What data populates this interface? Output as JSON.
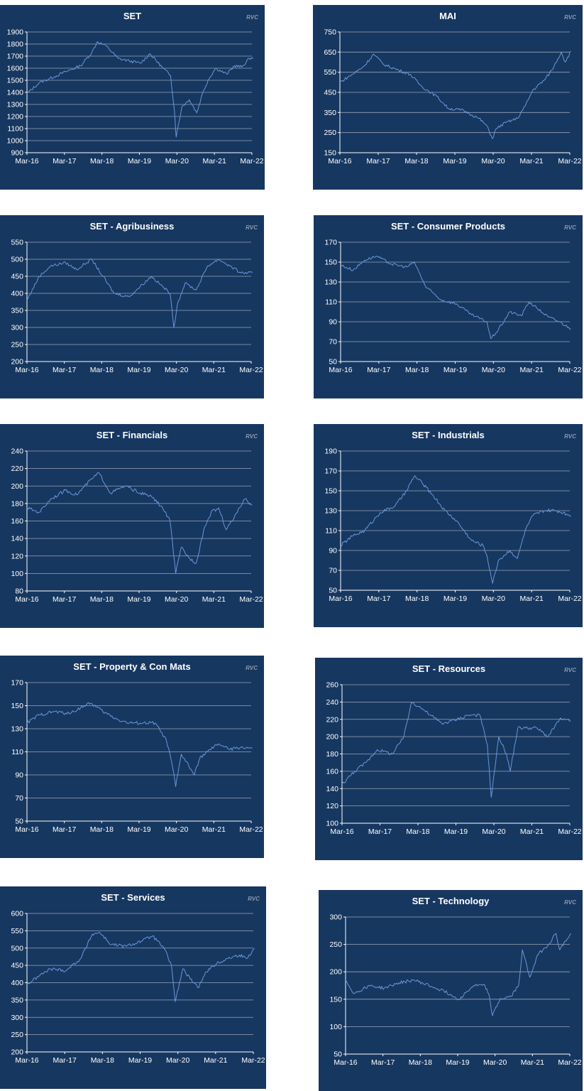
{
  "watermark": "RVC",
  "colors": {
    "panel_bg": "#163760",
    "line": "#6a98d8",
    "grid": "#9aa4b6",
    "axis": "#ffffff",
    "text": "#ffffff"
  },
  "chart_data": [
    {
      "type": "line",
      "title": "SET",
      "xlabel": "",
      "ylabel": "",
      "x_ticks": [
        "Mar-16",
        "Mar-17",
        "Mar-18",
        "Mar-19",
        "Mar-20",
        "Mar-21",
        "Mar-22"
      ],
      "y_ticks": [
        900,
        1000,
        1100,
        1200,
        1300,
        1400,
        1500,
        1600,
        1700,
        1800,
        1900
      ],
      "ylim": [
        900,
        1900
      ],
      "grid": true,
      "series": [
        {
          "x": [
            2016.17,
            2016.5,
            2016.9,
            2017.2,
            2017.6,
            2017.9,
            2018.05,
            2018.3,
            2018.6,
            2018.9,
            2019.2,
            2019.45,
            2019.8,
            2020.0,
            2020.1,
            2020.15,
            2020.3,
            2020.5,
            2020.7,
            2020.85,
            2021.0,
            2021.2,
            2021.5,
            2021.7,
            2021.9,
            2022.1,
            2022.2
          ],
          "y": [
            1390,
            1480,
            1530,
            1570,
            1620,
            1730,
            1820,
            1780,
            1680,
            1660,
            1640,
            1720,
            1600,
            1540,
            1260,
            1030,
            1280,
            1340,
            1230,
            1390,
            1500,
            1600,
            1550,
            1620,
            1610,
            1680,
            1690
          ]
        }
      ]
    },
    {
      "type": "line",
      "title": "MAI",
      "xlabel": "",
      "ylabel": "",
      "x_ticks": [
        "Mar-16",
        "Mar-17",
        "Mar-18",
        "Mar-19",
        "Mar-20",
        "Mar-21",
        "Mar-22"
      ],
      "y_ticks": [
        150,
        250,
        350,
        450,
        550,
        650,
        750
      ],
      "ylim": [
        150,
        750
      ],
      "grid": true,
      "series": [
        {
          "x": [
            2016.17,
            2016.5,
            2016.8,
            2017.05,
            2017.3,
            2017.7,
            2018.0,
            2018.3,
            2018.7,
            2019.0,
            2019.4,
            2019.8,
            2020.0,
            2020.15,
            2020.25,
            2020.5,
            2020.8,
            2021.0,
            2021.2,
            2021.5,
            2021.7,
            2021.95,
            2022.05,
            2022.2
          ],
          "y": [
            500,
            540,
            580,
            640,
            590,
            560,
            540,
            480,
            430,
            370,
            360,
            320,
            285,
            220,
            270,
            300,
            320,
            380,
            460,
            510,
            560,
            650,
            600,
            655
          ]
        }
      ]
    },
    {
      "type": "line",
      "title": "SET - Agribusiness",
      "xlabel": "",
      "ylabel": "",
      "x_ticks": [
        "Mar-16",
        "Mar-17",
        "Mar-18",
        "Mar-19",
        "Mar-20",
        "Mar-21",
        "Mar-22"
      ],
      "y_ticks": [
        200,
        250,
        300,
        350,
        400,
        450,
        500,
        550
      ],
      "ylim": [
        200,
        550
      ],
      "grid": true,
      "series": [
        {
          "x": [
            2016.17,
            2016.5,
            2016.8,
            2017.2,
            2017.5,
            2017.9,
            2018.2,
            2018.5,
            2018.9,
            2019.2,
            2019.5,
            2019.8,
            2020.0,
            2020.1,
            2020.2,
            2020.4,
            2020.7,
            2021.0,
            2021.3,
            2021.6,
            2021.9,
            2022.2
          ],
          "y": [
            380,
            450,
            480,
            490,
            470,
            500,
            450,
            400,
            390,
            420,
            450,
            420,
            400,
            300,
            370,
            430,
            410,
            480,
            500,
            480,
            460,
            460
          ]
        }
      ]
    },
    {
      "type": "line",
      "title": "SET - Consumer Products",
      "xlabel": "",
      "ylabel": "",
      "x_ticks": [
        "Mar-16",
        "Mar-17",
        "Mar-18",
        "Mar-19",
        "Mar-20",
        "Mar-21",
        "Mar-22"
      ],
      "y_ticks": [
        50,
        70,
        90,
        110,
        130,
        150,
        170
      ],
      "ylim": [
        50,
        170
      ],
      "grid": true,
      "series": [
        {
          "x": [
            2016.17,
            2016.5,
            2016.8,
            2017.1,
            2017.5,
            2017.9,
            2018.1,
            2018.4,
            2018.8,
            2019.2,
            2019.6,
            2020.0,
            2020.1,
            2020.3,
            2020.6,
            2020.9,
            2021.1,
            2021.3,
            2021.6,
            2021.9,
            2022.2
          ],
          "y": [
            147,
            142,
            152,
            156,
            148,
            145,
            150,
            125,
            112,
            108,
            97,
            90,
            73,
            82,
            100,
            96,
            110,
            104,
            95,
            90,
            83
          ]
        }
      ]
    },
    {
      "type": "line",
      "title": "SET - Financials",
      "xlabel": "",
      "ylabel": "",
      "x_ticks": [
        "Mar-16",
        "Mar-17",
        "Mar-18",
        "Mar-19",
        "Mar-20",
        "Mar-21",
        "Mar-22"
      ],
      "y_ticks": [
        80,
        100,
        120,
        140,
        160,
        180,
        200,
        220,
        240
      ],
      "ylim": [
        80,
        240
      ],
      "grid": true,
      "series": [
        {
          "x": [
            2016.17,
            2016.5,
            2016.8,
            2017.2,
            2017.5,
            2017.9,
            2018.1,
            2018.4,
            2018.8,
            2019.2,
            2019.5,
            2019.8,
            2020.0,
            2020.15,
            2020.3,
            2020.5,
            2020.7,
            2020.9,
            2021.1,
            2021.3,
            2021.5,
            2021.8,
            2022.0,
            2022.2
          ],
          "y": [
            175,
            170,
            185,
            195,
            190,
            208,
            215,
            192,
            200,
            192,
            188,
            175,
            160,
            100,
            130,
            118,
            112,
            150,
            170,
            175,
            150,
            170,
            185,
            178
          ]
        }
      ]
    },
    {
      "type": "line",
      "title": "SET - Industrials",
      "xlabel": "",
      "ylabel": "",
      "x_ticks": [
        "Mar-16",
        "Mar-17",
        "Mar-18",
        "Mar-19",
        "Mar-20",
        "Mar-21",
        "Mar-22"
      ],
      "y_ticks": [
        50,
        70,
        90,
        110,
        130,
        150,
        170,
        190
      ],
      "ylim": [
        50,
        190
      ],
      "grid": true,
      "series": [
        {
          "x": [
            2016.17,
            2016.5,
            2016.8,
            2017.2,
            2017.6,
            2017.9,
            2018.1,
            2018.3,
            2018.6,
            2018.9,
            2019.2,
            2019.6,
            2019.9,
            2020.0,
            2020.15,
            2020.3,
            2020.6,
            2020.8,
            2021.0,
            2021.2,
            2021.5,
            2021.8,
            2022.0,
            2022.2
          ],
          "y": [
            95,
            105,
            110,
            128,
            135,
            150,
            165,
            158,
            145,
            130,
            120,
            100,
            95,
            85,
            57,
            80,
            90,
            82,
            110,
            125,
            130,
            130,
            128,
            125
          ]
        }
      ]
    },
    {
      "type": "line",
      "title": "SET - Property & Con Mats",
      "xlabel": "",
      "ylabel": "",
      "x_ticks": [
        "Mar-16",
        "Mar-17",
        "Mar-18",
        "Mar-19",
        "Mar-20",
        "Mar-21",
        "Mar-22"
      ],
      "y_ticks": [
        50,
        70,
        90,
        110,
        130,
        150,
        170
      ],
      "ylim": [
        50,
        170
      ],
      "grid": true,
      "series": [
        {
          "x": [
            2016.17,
            2016.5,
            2016.9,
            2017.3,
            2017.7,
            2017.9,
            2018.2,
            2018.6,
            2018.9,
            2019.2,
            2019.6,
            2019.9,
            2020.05,
            2020.15,
            2020.3,
            2020.5,
            2020.65,
            2020.8,
            2021.0,
            2021.3,
            2021.6,
            2021.9,
            2022.2
          ],
          "y": [
            135,
            142,
            145,
            143,
            150,
            152,
            145,
            138,
            135,
            135,
            135,
            120,
            100,
            80,
            108,
            98,
            90,
            105,
            110,
            117,
            112,
            114,
            113
          ]
        }
      ]
    },
    {
      "type": "line",
      "title": "SET - Resources",
      "xlabel": "",
      "ylabel": "",
      "x_ticks": [
        "Mar-16",
        "Mar-17",
        "Mar-18",
        "Mar-19",
        "Mar-20",
        "Mar-21",
        "Mar-22"
      ],
      "y_ticks": [
        100,
        120,
        140,
        160,
        180,
        200,
        220,
        240,
        260
      ],
      "ylim": [
        100,
        260
      ],
      "grid": true,
      "series": [
        {
          "x": [
            2016.17,
            2016.5,
            2016.8,
            2017.1,
            2017.5,
            2017.8,
            2018.0,
            2018.2,
            2018.5,
            2018.8,
            2019.2,
            2019.5,
            2019.8,
            2020.0,
            2020.1,
            2020.3,
            2020.5,
            2020.6,
            2020.8,
            2021.0,
            2021.3,
            2021.6,
            2021.9,
            2022.2
          ],
          "y": [
            145,
            160,
            170,
            185,
            180,
            200,
            240,
            235,
            225,
            215,
            220,
            225,
            225,
            190,
            130,
            200,
            180,
            160,
            210,
            210,
            210,
            200,
            220,
            218
          ]
        }
      ]
    },
    {
      "type": "line",
      "title": "SET - Services",
      "xlabel": "",
      "ylabel": "",
      "x_ticks": [
        "Mar-16",
        "Mar-17",
        "Mar-18",
        "Mar-19",
        "Mar-20",
        "Mar-21",
        "Mar-22"
      ],
      "y_ticks": [
        200,
        250,
        300,
        350,
        400,
        450,
        500,
        550,
        600
      ],
      "ylim": [
        200,
        600
      ],
      "grid": true,
      "series": [
        {
          "x": [
            2016.17,
            2016.5,
            2016.8,
            2017.2,
            2017.6,
            2017.9,
            2018.1,
            2018.4,
            2018.8,
            2019.2,
            2019.5,
            2019.8,
            2020.0,
            2020.1,
            2020.3,
            2020.5,
            2020.7,
            2020.9,
            2021.2,
            2021.5,
            2021.8,
            2022.0,
            2022.2
          ],
          "y": [
            395,
            420,
            440,
            435,
            470,
            540,
            545,
            510,
            505,
            520,
            535,
            500,
            450,
            345,
            440,
            410,
            385,
            430,
            455,
            470,
            480,
            470,
            500
          ]
        }
      ]
    },
    {
      "type": "line",
      "title": "SET - Technology",
      "xlabel": "",
      "ylabel": "",
      "x_ticks": [
        "Mar-16",
        "Mar-17",
        "Mar-18",
        "Mar-19",
        "Mar-20",
        "Mar-21",
        "Mar-22"
      ],
      "y_ticks": [
        50,
        100,
        150,
        200,
        250,
        300
      ],
      "ylim": [
        50,
        300
      ],
      "grid": true,
      "series": [
        {
          "x": [
            2016.17,
            2016.4,
            2016.8,
            2017.2,
            2017.6,
            2018.0,
            2018.4,
            2018.8,
            2019.2,
            2019.6,
            2019.9,
            2020.0,
            2020.1,
            2020.3,
            2020.6,
            2020.8,
            2020.9,
            2021.1,
            2021.3,
            2021.6,
            2021.8,
            2021.9,
            2022.1,
            2022.2
          ],
          "y": [
            185,
            160,
            175,
            170,
            180,
            185,
            175,
            165,
            150,
            175,
            175,
            160,
            120,
            150,
            155,
            175,
            240,
            190,
            230,
            250,
            270,
            240,
            260,
            270
          ]
        }
      ]
    }
  ]
}
